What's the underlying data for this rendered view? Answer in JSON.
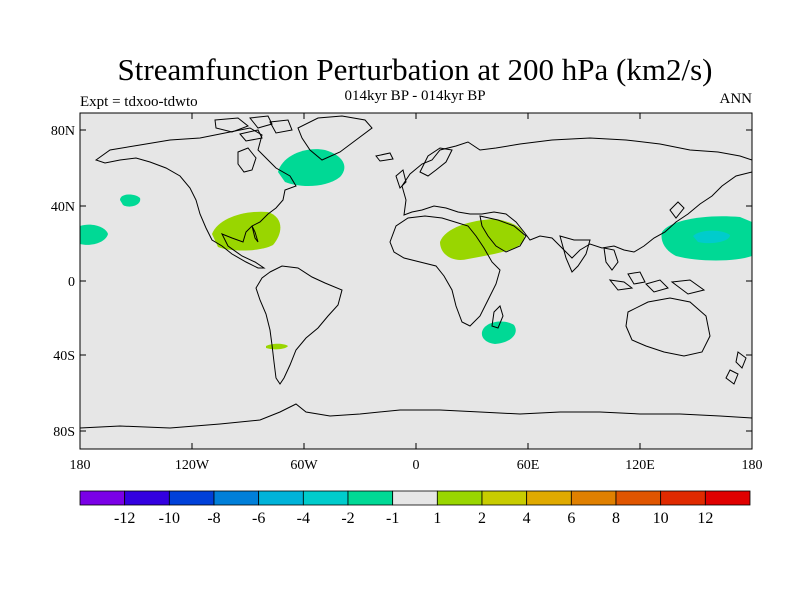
{
  "header": {
    "title": "Streamfunction Perturbation at 200 hPa (km2/s)",
    "subtitle": "014kyr BP - 014kyr BP",
    "left_label": "Expt = tdxoo-tdwto",
    "right_label": "ANN"
  },
  "map": {
    "background": "#e6e6e6",
    "lat_ticks": [
      "80N",
      "40N",
      "0",
      "40S",
      "80S"
    ],
    "lon_ticks": [
      "180",
      "120W",
      "60W",
      "0",
      "60E",
      "120E",
      "180"
    ],
    "anomalies": [
      {
        "name": "north-atlantic-negative",
        "level": "-2",
        "color": "#00d995"
      },
      {
        "name": "north-pacific-negative",
        "level": "-2",
        "color": "#00d995"
      },
      {
        "name": "east-pacific-negative",
        "level": "-2",
        "color": "#00d995"
      },
      {
        "name": "west-pacific-negative",
        "level": "-2",
        "color": "#00d995"
      },
      {
        "name": "west-pacific-core",
        "level": "-4",
        "color": "#00cccc"
      },
      {
        "name": "madagascar-negative",
        "level": "-2",
        "color": "#00d995"
      },
      {
        "name": "central-america-positive",
        "level": "2",
        "color": "#99d600"
      },
      {
        "name": "north-africa-positive",
        "level": "2",
        "color": "#99d600"
      },
      {
        "name": "south-america-positive",
        "level": "2",
        "color": "#99d600"
      }
    ]
  },
  "colorbar": {
    "labels": [
      "-12",
      "-10",
      "-8",
      "-6",
      "-4",
      "-2",
      "-1",
      "1",
      "2",
      "4",
      "6",
      "8",
      "10",
      "12"
    ],
    "colors": [
      "#7a00e6",
      "#3300e0",
      "#0040d9",
      "#007fd9",
      "#00b3d9",
      "#00cccc",
      "#00d995",
      "#e6e6e6",
      "#99d600",
      "#c8cc00",
      "#e0aa00",
      "#e08000",
      "#e05500",
      "#e02a00",
      "#e00000"
    ]
  }
}
